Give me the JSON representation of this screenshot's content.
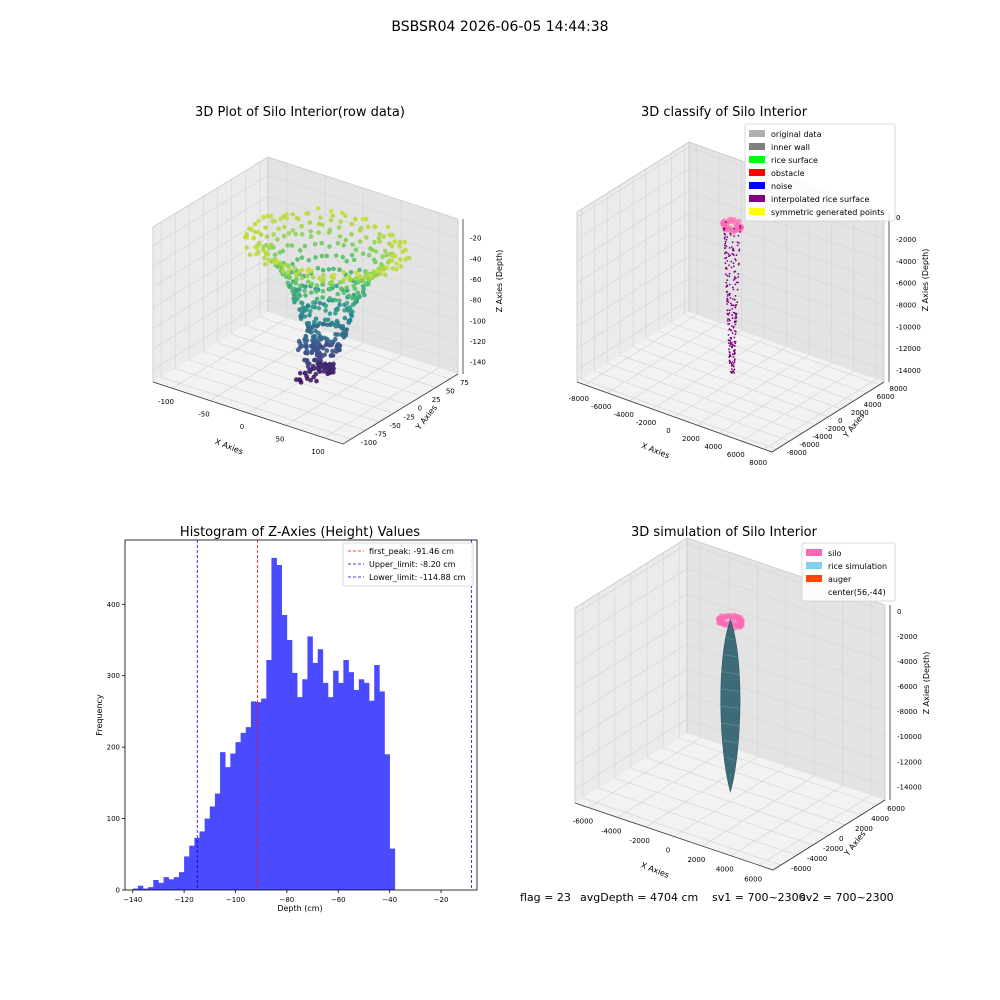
{
  "figure_title": "BSBSR04 2026-06-05 14:44:38",
  "status_line": {
    "flag": "flag = 23",
    "avg_depth": "avgDepth = 4704 cm",
    "sv1": "sv1 = 700~2300",
    "sv2": "sv2 = 700~2300"
  },
  "colors": {
    "hist_bar": "#4a4aff",
    "first_peak_line": "#ff0000",
    "limit_lines": "#0000cc",
    "interpolated": "#800080",
    "silo": "#ff69b4",
    "rice_sim": "#3e6b78"
  },
  "chart_data": [
    {
      "id": "raw",
      "type": "scatter",
      "projection": "3d",
      "title": "3D Plot of Silo Interior(row data)",
      "xlabel": "X Axies",
      "ylabel": "Y Axies",
      "zlabel": "Z Axies (Depth)",
      "xticks": [
        "-100",
        "-50",
        "0",
        "50",
        "100"
      ],
      "yticks": [
        "-100",
        "-75",
        "-50",
        "-25",
        "0",
        "25",
        "50",
        "75"
      ],
      "zticks": [
        "-20",
        "-40",
        "-60",
        "-80",
        "-100",
        "-120",
        "-140"
      ],
      "xlim": [
        -115,
        115
      ],
      "ylim": [
        -100,
        90
      ],
      "zlim": [
        -150,
        -5
      ],
      "colormap": "viridis"
    },
    {
      "id": "classify",
      "type": "scatter",
      "projection": "3d",
      "title": "3D classify of Silo Interior",
      "xlabel": "X Axies",
      "ylabel": "Y Axies",
      "zlabel": "Z Axies (Depth)",
      "xticks": [
        "-8000",
        "-6000",
        "-4000",
        "-2000",
        "0",
        "2000",
        "4000",
        "6000",
        "8000"
      ],
      "yticks": [
        "-8000",
        "-6000",
        "-4000",
        "-2000",
        "0",
        "2000",
        "4000",
        "6000",
        "8000"
      ],
      "zticks": [
        "0",
        "-2000",
        "-4000",
        "-6000",
        "-8000",
        "-10000",
        "-12000",
        "-14000"
      ],
      "xlim": [
        -8000,
        8000
      ],
      "ylim": [
        -8000,
        8000
      ],
      "zlim": [
        -15500,
        500
      ],
      "legend": [
        {
          "label": "original data",
          "color": "#b0b0b0"
        },
        {
          "label": "inner wall",
          "color": "#808080"
        },
        {
          "label": "rice surface",
          "color": "#00ff00"
        },
        {
          "label": "obstacle",
          "color": "#ff0000"
        },
        {
          "label": "noise",
          "color": "#0000ff"
        },
        {
          "label": "interpolated rice surface",
          "color": "#800080"
        },
        {
          "label": "symmetric generated points",
          "color": "#ffff00"
        }
      ],
      "legend_position": "top-right"
    },
    {
      "id": "hist",
      "type": "bar",
      "title": "Histogram of Z-Axies (Height) Values",
      "xlabel": "Depth (cm)",
      "ylabel": "Frequency",
      "xlim": [
        -143,
        -6
      ],
      "ylim": [
        0,
        490
      ],
      "xticks": [
        -140,
        -120,
        -100,
        -80,
        -60,
        -40,
        -20
      ],
      "yticks": [
        0,
        100,
        200,
        300,
        400
      ],
      "bin_start": -140,
      "bin_width": 2,
      "values": [
        2,
        6,
        2,
        4,
        14,
        10,
        18,
        15,
        18,
        25,
        47,
        62,
        73,
        82,
        100,
        117,
        135,
        193,
        172,
        191,
        207,
        220,
        228,
        264,
        263,
        268,
        322,
        465,
        455,
        385,
        350,
        304,
        270,
        295,
        355,
        318,
        337,
        290,
        270,
        307,
        290,
        322,
        305,
        280,
        295,
        290,
        265,
        315,
        278,
        190,
        58
      ],
      "markers": [
        {
          "label": "first_peak: -91.46 cm",
          "x": -91.46,
          "color": "#ff0000"
        },
        {
          "label": "Upper_limit: -8.20 cm",
          "x": -8.2,
          "color": "#0000cc"
        },
        {
          "label": "Lower_limit: -114.88 cm",
          "x": -114.88,
          "color": "#0000cc"
        }
      ],
      "legend_position": "top-right"
    },
    {
      "id": "sim",
      "type": "scatter",
      "projection": "3d",
      "title": "3D simulation of Silo Interior",
      "xlabel": "X Axies",
      "ylabel": "Y Axies",
      "zlabel": "Z Axies (Depth)",
      "xticks": [
        "-6000",
        "-4000",
        "-2000",
        "0",
        "2000",
        "4000",
        "6000"
      ],
      "yticks": [
        "-6000",
        "-4000",
        "-2000",
        "0",
        "2000",
        "4000",
        "6000"
      ],
      "zticks": [
        "0",
        "-2000",
        "-4000",
        "-6000",
        "-8000",
        "-10000",
        "-12000",
        "-14000"
      ],
      "xlim": [
        -7000,
        7000
      ],
      "ylim": [
        -7000,
        7000
      ],
      "zlim": [
        -15500,
        500
      ],
      "legend": [
        {
          "label": "silo",
          "color": "#ff69b4"
        },
        {
          "label": "rice simulation",
          "color": "#87ceeb"
        },
        {
          "label": "auger",
          "color": "#ff4500"
        },
        {
          "label": "center(56,-44)",
          "color": ""
        }
      ],
      "legend_position": "top-right"
    }
  ]
}
